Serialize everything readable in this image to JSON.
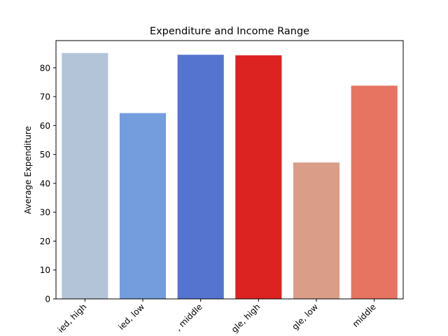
{
  "chart_data": {
    "type": "bar",
    "title": "Expenditure and Income Range",
    "xlabel": "",
    "ylabel": "Average Expenditure",
    "categories": [
      "Married, high",
      "Married, low",
      "Married, middle",
      "Single, high",
      "Single, low",
      "Single, middle"
    ],
    "tick_labels_visible": [
      "ied, high",
      "ied, low",
      ", middle",
      "gle, high",
      "gle, low",
      "middle"
    ],
    "values": [
      85.1,
      64.3,
      84.5,
      84.3,
      47.2,
      73.8
    ],
    "colors": [
      "#b4c4d8",
      "#739ddc",
      "#5574cf",
      "#dd2222",
      "#da9d88",
      "#e67461"
    ],
    "ylim": [
      0,
      89.4
    ],
    "yticks": [
      0,
      10,
      20,
      30,
      40,
      50,
      60,
      70,
      80
    ],
    "grid": false,
    "legend": "none"
  }
}
